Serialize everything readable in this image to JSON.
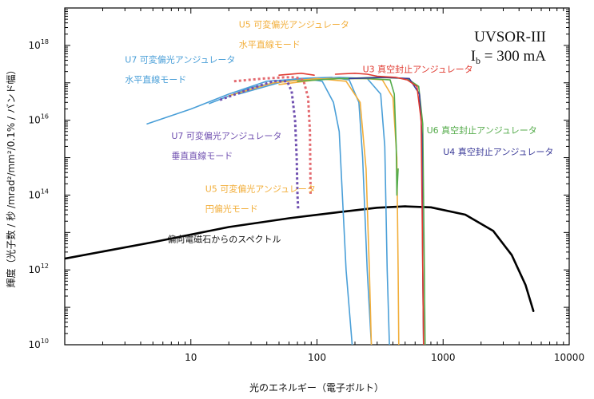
{
  "chart_data": {
    "type": "line",
    "title": "",
    "xlabel": "光のエネルギー（電子ボルト）",
    "ylabel": "輝度（光子数 / 秒 /mrad²/mm²/0.1% / バンド幅）",
    "xscale": "log",
    "yscale": "log",
    "xlim": [
      1,
      10000
    ],
    "ylim": [
      10000000000.0,
      1e+19
    ],
    "grid": false,
    "x_ticks": [
      {
        "value": 10,
        "label": "10"
      },
      {
        "value": 100,
        "label": "100"
      },
      {
        "value": 1000,
        "label": "1000"
      },
      {
        "value": 10000,
        "label": "10000"
      }
    ],
    "y_ticks": [
      {
        "value": 10000000000.0,
        "base": "10",
        "exp": "10"
      },
      {
        "value": 1000000000000.0,
        "base": "10",
        "exp": "12"
      },
      {
        "value": 100000000000000.0,
        "base": "10",
        "exp": "14"
      },
      {
        "value": 1e+16,
        "base": "10",
        "exp": "16"
      },
      {
        "value": 1e+18,
        "base": "10",
        "exp": "18"
      }
    ],
    "facility": {
      "name": "UVSOR-III",
      "current_prefix": "I",
      "current_sub": "b",
      "current_value": " = 300 mA"
    },
    "series": [
      {
        "name": "偏向電磁石からのスペクトル",
        "color": "#000000",
        "dash": false,
        "width": 2.6,
        "points": [
          [
            1,
            2000000000000.0
          ],
          [
            5,
            5500000000000.0
          ],
          [
            20,
            14000000000000.0
          ],
          [
            60,
            24000000000000.0
          ],
          [
            150,
            35000000000000.0
          ],
          [
            300,
            46000000000000.0
          ],
          [
            500,
            50000000000000.0
          ],
          [
            800,
            47000000000000.0
          ],
          [
            1500,
            30000000000000.0
          ],
          [
            2500,
            11000000000000.0
          ],
          [
            3500,
            2500000000000.0
          ],
          [
            4500,
            400000000000.0
          ],
          [
            5200,
            80000000000.0
          ]
        ]
      },
      {
        "name": "U7 可変偏光アンジュレータ 水平直線モード",
        "color": "#4a9fd8",
        "dash": false,
        "width": 1.6,
        "points": [
          [
            4.5,
            8000000000000000.0
          ],
          [
            10,
            2e+16
          ],
          [
            20,
            5e+16
          ],
          [
            40,
            1.1e+17
          ],
          [
            80,
            1.3e+17
          ],
          [
            110,
            1.1e+17
          ],
          [
            135,
            3e+16
          ],
          [
            150,
            5000000000000000.0
          ],
          [
            170,
            1000000000000.0
          ],
          [
            190,
            10000000000.0
          ]
        ]
      },
      {
        "name": "U7 可変偏光アンジュレータ 水平直線モード",
        "color": "#4a9fd8",
        "dash": false,
        "width": 1.6,
        "points": [
          [
            14,
            2.8e+16
          ],
          [
            30,
            7.5e+16
          ],
          [
            70,
            1.3e+17
          ],
          [
            130,
            1.4e+17
          ],
          [
            180,
            1.2e+17
          ],
          [
            215,
            3e+16
          ],
          [
            230,
            1000000000000000.0
          ],
          [
            250,
            1000000000000.0
          ],
          [
            270,
            10000000000.0
          ]
        ]
      },
      {
        "name": "U7 可変偏光アンジュレータ 水平直線モード",
        "color": "#4a9fd8",
        "dash": false,
        "width": 1.6,
        "points": [
          [
            24,
            5e+16
          ],
          [
            60,
            1.2e+17
          ],
          [
            150,
            1.4e+17
          ],
          [
            250,
            1.3e+17
          ],
          [
            320,
            5e+16
          ],
          [
            345,
            2000000000000000.0
          ],
          [
            360,
            1000000000000.0
          ],
          [
            375,
            10000000000.0
          ]
        ]
      },
      {
        "name": "U5 可変偏光アンジュレータ 水平直線モード",
        "color": "#f2ae3a",
        "dash": false,
        "width": 1.6,
        "points": [
          [
            20,
            4.5e+16
          ],
          [
            45,
            1e+17
          ],
          [
            100,
            1.3e+17
          ],
          [
            170,
            1.1e+17
          ],
          [
            220,
            3e+16
          ],
          [
            245,
            500000000000000.0
          ],
          [
            260,
            1000000000000.0
          ],
          [
            270,
            10000000000.0
          ]
        ]
      },
      {
        "name": "U5 可変偏光アンジュレータ 水平直線モード",
        "color": "#f2ae3a",
        "dash": false,
        "width": 1.6,
        "points": [
          [
            50,
            9e+16
          ],
          [
            120,
            1.3e+17
          ],
          [
            240,
            1.3e+17
          ],
          [
            330,
            1.2e+17
          ],
          [
            400,
            4e+16
          ],
          [
            430,
            1000000000000000.0
          ],
          [
            440,
            1000000000000.0
          ],
          [
            445,
            10000000000.0
          ]
        ]
      },
      {
        "name": "U6 真空封止アンジュレータ",
        "color": "#54ab4a",
        "dash": false,
        "width": 1.6,
        "points": [
          [
            70,
            1.1e+17
          ],
          [
            150,
            1.3e+17
          ],
          [
            260,
            1.3e+17
          ],
          [
            380,
            1.2e+17
          ],
          [
            410,
            5e+16
          ],
          [
            425,
            2000000000000000.0
          ],
          [
            430,
            100000000000000.0
          ],
          [
            440,
            500000000000000.0
          ]
        ]
      },
      {
        "name": "U6 真空封止アンジュレータ",
        "color": "#54ab4a",
        "dash": false,
        "width": 1.6,
        "points": [
          [
            160,
            1.3e+17
          ],
          [
            300,
            1.4e+17
          ],
          [
            520,
            1.3e+17
          ],
          [
            640,
            8e+16
          ],
          [
            690,
            8000000000000000.0
          ],
          [
            710,
            1000000000000.0
          ],
          [
            720,
            10000000000.0
          ]
        ]
      },
      {
        "name": "U4 真空封止アンジュレータ",
        "color": "#3a3a98",
        "dash": false,
        "width": 1.6,
        "points": [
          [
            180,
            1.3e+17
          ],
          [
            340,
            1.4e+17
          ],
          [
            540,
            1.3e+17
          ],
          [
            650,
            5e+16
          ],
          [
            680,
            4000000000000000.0
          ],
          [
            690,
            1000000000000.0
          ],
          [
            700,
            10000000000.0
          ]
        ]
      },
      {
        "name": "U3 真空封止アンジュレータ",
        "color": "#e03a30",
        "dash": false,
        "width": 1.6,
        "points": [
          [
            50,
            1.6e+17
          ],
          [
            75,
            1.8e+17
          ],
          [
            95,
            1.6e+17
          ]
        ]
      },
      {
        "name": "U3 真空封止アンジュレータ",
        "color": "#e03a30",
        "dash": false,
        "width": 1.6,
        "points": [
          [
            140,
            1.7e+17
          ],
          [
            200,
            1.8e+17
          ],
          [
            250,
            1.7e+17
          ],
          [
            300,
            1.5e+17
          ],
          [
            420,
            1.4e+17
          ],
          [
            520,
            1.2e+17
          ],
          [
            620,
            8e+16
          ],
          [
            670,
            1e+16
          ],
          [
            690,
            1000000000000.0
          ],
          [
            700,
            10000000000.0
          ]
        ]
      },
      {
        "name": "U7 可変偏光アンジュレータ 垂直直線モード",
        "color": "#7050b0",
        "dash": true,
        "width": 3,
        "points": [
          [
            17,
            3.5e+16
          ],
          [
            30,
            7e+16
          ],
          [
            45,
            1.1e+17
          ],
          [
            58,
            1.1e+17
          ],
          [
            63,
            6e+16
          ],
          [
            67,
            1e+16
          ],
          [
            69,
            1000000000000000.0
          ],
          [
            70,
            100000000000000.0
          ],
          [
            71,
            40000000000000.0
          ]
        ]
      },
      {
        "name": "U5 可変偏光アンジュレータ 円偏光モード",
        "color": "#e36a70",
        "dash": true,
        "width": 3,
        "points": [
          [
            22,
            1.1e+17
          ],
          [
            38,
            1.3e+17
          ],
          [
            55,
            1.4e+17
          ],
          [
            68,
            1.4e+17
          ],
          [
            78,
            1.2e+17
          ],
          [
            85,
            4e+16
          ],
          [
            88,
            5000000000000000.0
          ],
          [
            89,
            100000000000000.0
          ],
          [
            90,
            100000000000000.0
          ]
        ]
      }
    ],
    "annotations": [
      {
        "lines": [
          "U7 可変偏光アンジュレータ",
          "水平直線モード"
        ],
        "color": "#4a9fd8",
        "x": 3,
        "y": 3.5e+17
      },
      {
        "lines": [
          "U5 可変偏光アンジュレータ",
          "水平直線モード"
        ],
        "color": "#f2ae3a",
        "x": 24,
        "y": 3e+18
      },
      {
        "lines": [
          "U3 真空封止アンジュレータ"
        ],
        "color": "#e03a30",
        "x": 230,
        "y": 1.9e+17
      },
      {
        "lines": [
          "U6 真空封止アンジュレータ"
        ],
        "color": "#54ab4a",
        "x": 740,
        "y": 4500000000000000.0
      },
      {
        "lines": [
          "U4 真空封止アンジュレータ"
        ],
        "color": "#3a3a98",
        "x": 1000,
        "y": 1200000000000000.0
      },
      {
        "lines": [
          "U7 可変偏光アンジュレータ",
          "垂直直線モード"
        ],
        "color": "#7050b0",
        "x": 7,
        "y": 3200000000000000.0
      },
      {
        "lines": [
          "U5 可変偏光アンジュレータ",
          "円偏光モード"
        ],
        "color": "#f2ae3a",
        "x": 13,
        "y": 120000000000000.0
      },
      {
        "lines": [
          "偏向電磁石からのスペクトル"
        ],
        "color": "#111111",
        "x": 6.5,
        "y": 5500000000000.0
      }
    ]
  }
}
